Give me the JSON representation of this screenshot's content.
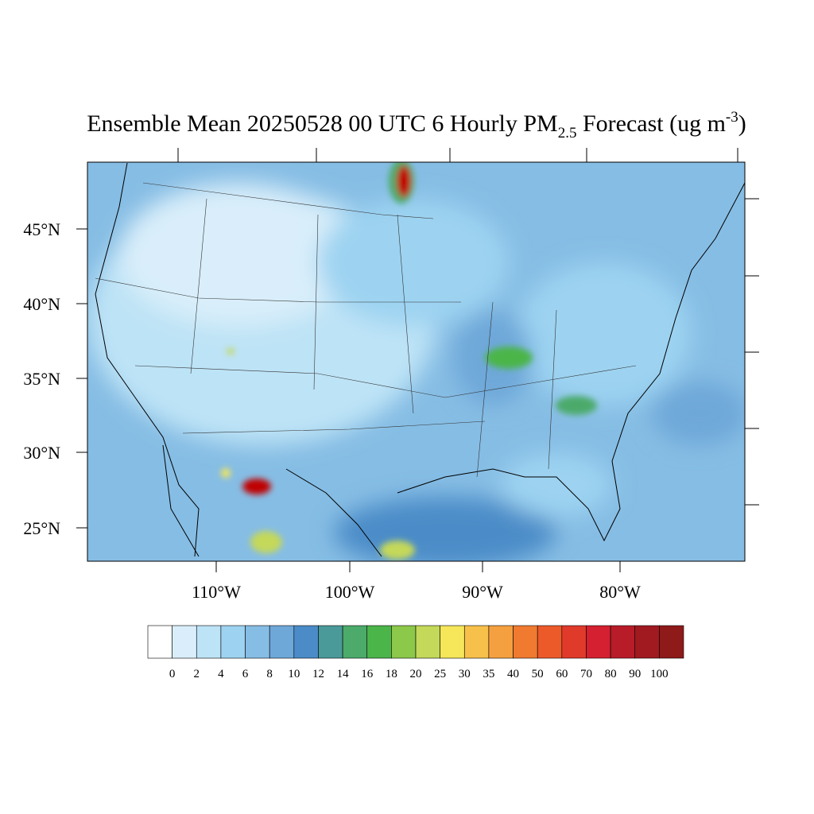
{
  "title": {
    "main": "Ensemble Mean 20250528 00 UTC 6 Hourly PM",
    "sub": "2.5",
    "mid": " Forecast (ug m",
    "sup": "-3",
    "end": ")"
  },
  "lat_labels": [
    "45°N",
    "40°N",
    "35°N",
    "30°N",
    "25°N"
  ],
  "lon_labels": [
    "110°W",
    "100°W",
    "90°W",
    "80°W"
  ],
  "colorbar": {
    "levels": [
      0,
      2,
      4,
      6,
      8,
      10,
      12,
      14,
      16,
      18,
      20,
      25,
      30,
      35,
      40,
      50,
      60,
      70,
      80,
      90,
      100
    ],
    "colors": [
      "#ffffff",
      "#d9eefa",
      "#bde3f6",
      "#9dd3f1",
      "#86bde4",
      "#6ea8d9",
      "#4b8cc8",
      "#4a9a9a",
      "#4caa6a",
      "#4bb54a",
      "#8cc84a",
      "#c4d85a",
      "#f5e65a",
      "#f7c04a",
      "#f5a040",
      "#f07a30",
      "#ec5a2a",
      "#e03a2a",
      "#d42030",
      "#b81c28",
      "#a01a20",
      "#8e1a1a"
    ]
  }
}
